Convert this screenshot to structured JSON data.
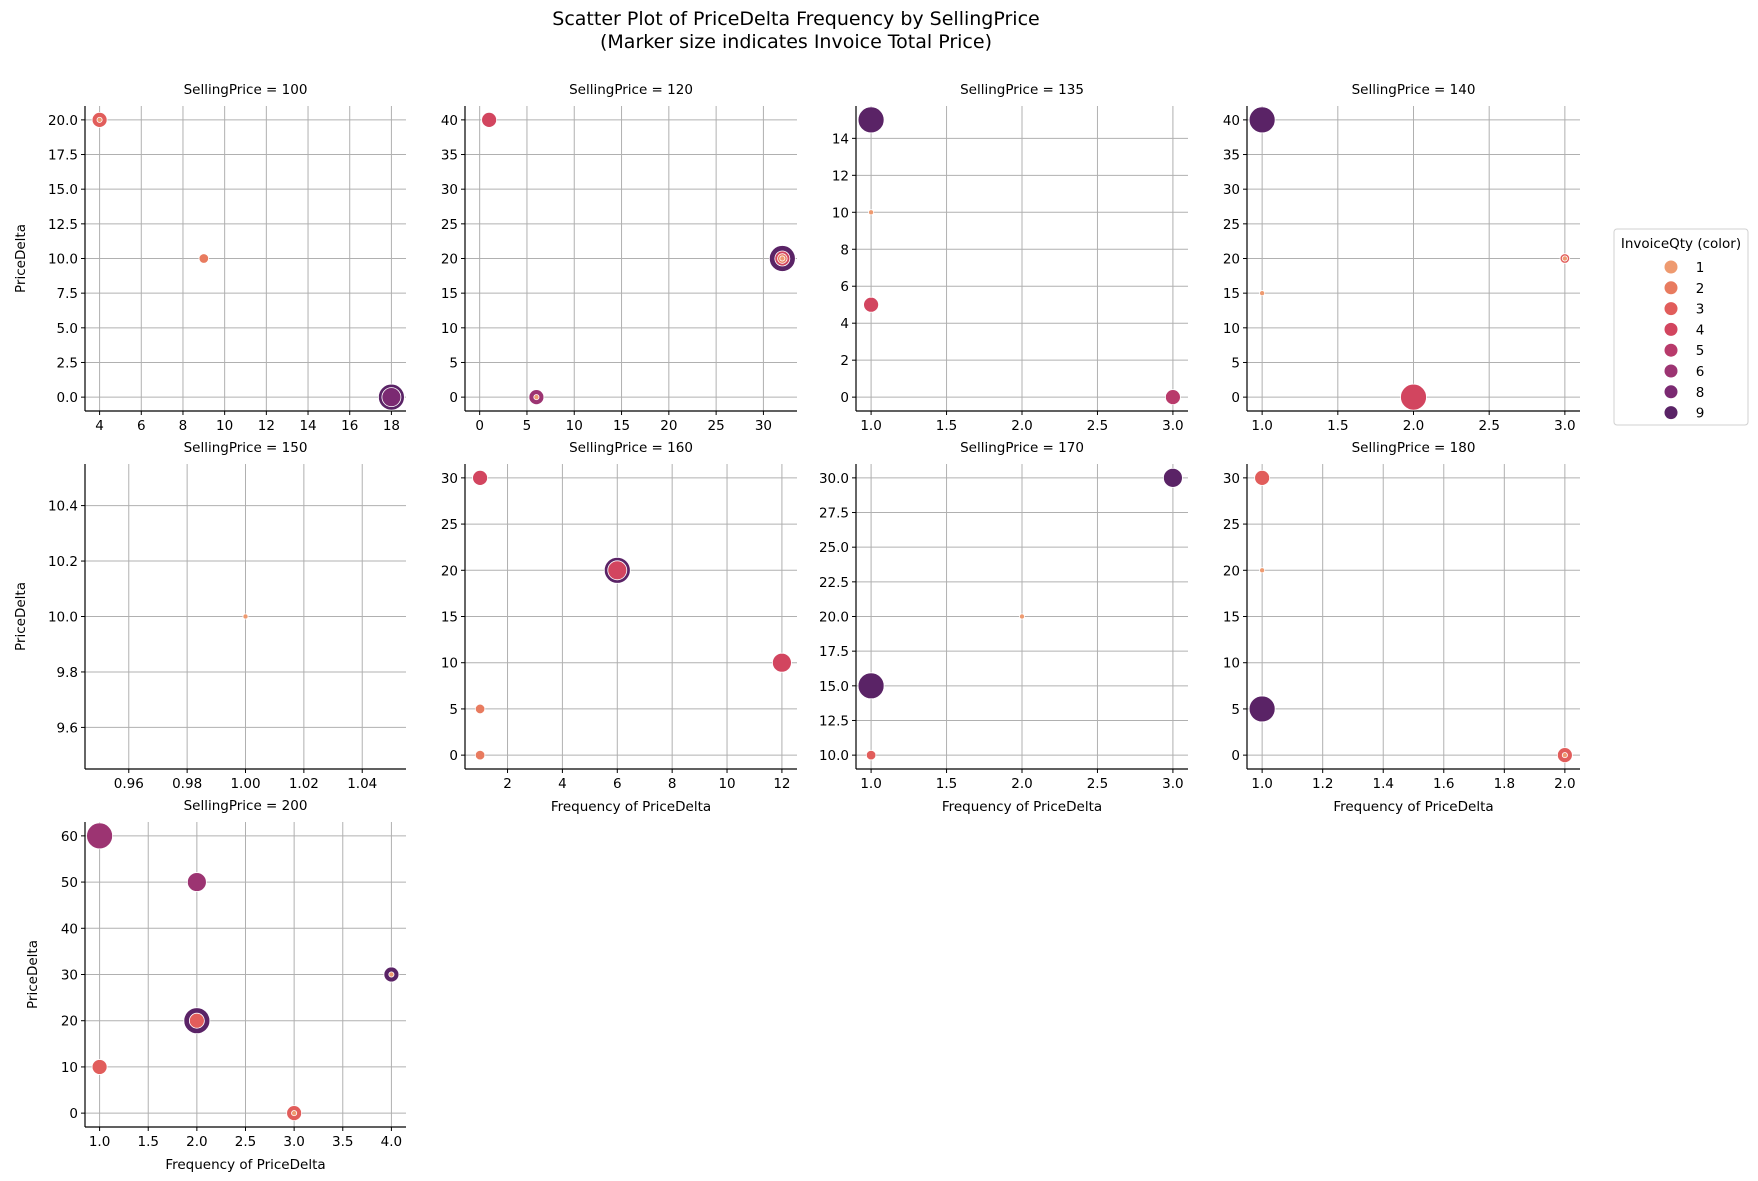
{
  "chart_data": {
    "type": "scatter",
    "title_lines": [
      "Scatter Plot of PriceDelta Frequency by SellingPrice",
      "(Marker size indicates Invoice Total Price)"
    ],
    "xlabel": "Frequency of PriceDelta",
    "ylabel": "PriceDelta",
    "grid": true,
    "legend": {
      "title": "InvoiceQty (color)",
      "placement": "right",
      "entries": [
        {
          "label": "1",
          "color": "#ee9a70"
        },
        {
          "label": "2",
          "color": "#e87b5f"
        },
        {
          "label": "3",
          "color": "#e15d5b"
        },
        {
          "label": "4",
          "color": "#d2455f"
        },
        {
          "label": "5",
          "color": "#b83a6b"
        },
        {
          "label": "6",
          "color": "#9c3472"
        },
        {
          "label": "8",
          "color": "#7b2a72"
        },
        {
          "label": "9",
          "color": "#5a2366"
        }
      ]
    },
    "size_note": "marker_size_level is relative (1 smallest – 5 largest Invoice Total Price)",
    "panels": [
      {
        "title": "SellingPrice = 100",
        "xlim": [
          3.3,
          18.7
        ],
        "ylim": [
          -1,
          21
        ],
        "xticks": [
          "4",
          "6",
          "8",
          "10",
          "12",
          "14",
          "16",
          "18"
        ],
        "yticks": [
          "0.0",
          "2.5",
          "5.0",
          "7.5",
          "10.0",
          "12.5",
          "15.0",
          "17.5",
          "20.0"
        ],
        "show_xlabel": false,
        "show_ylabel": true,
        "points": [
          {
            "x": 18,
            "y": 0,
            "qty": 9,
            "marker_size_level": 5
          },
          {
            "x": 18,
            "y": 0,
            "qty": 8,
            "marker_size_level": 4
          },
          {
            "x": 4,
            "y": 20,
            "qty": 3,
            "marker_size_level": 3
          },
          {
            "x": 4,
            "y": 20,
            "qty": 1,
            "marker_size_level": 1
          },
          {
            "x": 9,
            "y": 10,
            "qty": 2,
            "marker_size_level": 2
          }
        ]
      },
      {
        "title": "SellingPrice = 120",
        "xlim": [
          -1.55,
          33.55
        ],
        "ylim": [
          -2,
          42
        ],
        "xticks": [
          "0",
          "5",
          "10",
          "15",
          "20",
          "25",
          "30"
        ],
        "yticks": [
          "0",
          "5",
          "10",
          "15",
          "20",
          "25",
          "30",
          "35",
          "40"
        ],
        "show_xlabel": false,
        "show_ylabel": false,
        "points": [
          {
            "x": 1,
            "y": 40,
            "qty": 4,
            "marker_size_level": 3
          },
          {
            "x": 6,
            "y": 0,
            "qty": 6,
            "marker_size_level": 3
          },
          {
            "x": 6,
            "y": 0,
            "qty": 1,
            "marker_size_level": 1
          },
          {
            "x": 32,
            "y": 20,
            "qty": 9,
            "marker_size_level": 5
          },
          {
            "x": 32,
            "y": 20,
            "qty": 4,
            "marker_size_level": 3
          },
          {
            "x": 32,
            "y": 20,
            "qty": 2,
            "marker_size_level": 2
          },
          {
            "x": 32,
            "y": 20,
            "qty": 1,
            "marker_size_level": 1
          }
        ]
      },
      {
        "title": "SellingPrice = 135",
        "xlim": [
          0.9,
          3.1
        ],
        "ylim": [
          -0.75,
          15.75
        ],
        "xticks": [
          "1.0",
          "1.5",
          "2.0",
          "2.5",
          "3.0"
        ],
        "yticks": [
          "0",
          "2",
          "4",
          "6",
          "8",
          "10",
          "12",
          "14"
        ],
        "show_xlabel": false,
        "show_ylabel": false,
        "points": [
          {
            "x": 1,
            "y": 15,
            "qty": 9,
            "marker_size_level": 5
          },
          {
            "x": 1,
            "y": 10,
            "qty": 1,
            "marker_size_level": 1
          },
          {
            "x": 1,
            "y": 5,
            "qty": 4,
            "marker_size_level": 3
          },
          {
            "x": 3,
            "y": 0,
            "qty": 5,
            "marker_size_level": 3
          }
        ]
      },
      {
        "title": "SellingPrice = 140",
        "xlim": [
          0.9,
          3.1
        ],
        "ylim": [
          -2,
          42
        ],
        "xticks": [
          "1.0",
          "1.5",
          "2.0",
          "2.5",
          "3.0"
        ],
        "yticks": [
          "0",
          "5",
          "10",
          "15",
          "20",
          "25",
          "30",
          "35",
          "40"
        ],
        "show_xlabel": false,
        "show_ylabel": false,
        "points": [
          {
            "x": 1,
            "y": 40,
            "qty": 9,
            "marker_size_level": 5
          },
          {
            "x": 1,
            "y": 15,
            "qty": 1,
            "marker_size_level": 1
          },
          {
            "x": 3,
            "y": 20,
            "qty": 3,
            "marker_size_level": 2
          },
          {
            "x": 3,
            "y": 20,
            "qty": 1,
            "marker_size_level": 1
          },
          {
            "x": 2,
            "y": 0,
            "qty": 4,
            "marker_size_level": 5
          }
        ]
      },
      {
        "title": "SellingPrice = 150",
        "xlim": [
          0.945,
          1.055
        ],
        "ylim": [
          9.45,
          10.55
        ],
        "xticks": [
          "0.96",
          "0.98",
          "1.00",
          "1.02",
          "1.04"
        ],
        "yticks": [
          "9.6",
          "9.8",
          "10.0",
          "10.2",
          "10.4"
        ],
        "show_xlabel": false,
        "show_ylabel": true,
        "points": [
          {
            "x": 1,
            "y": 10,
            "qty": 1,
            "marker_size_level": 1
          }
        ]
      },
      {
        "title": "SellingPrice = 160",
        "xlim": [
          0.45,
          12.55
        ],
        "ylim": [
          -1.5,
          31.5
        ],
        "xticks": [
          "2",
          "4",
          "6",
          "8",
          "10",
          "12"
        ],
        "yticks": [
          "0",
          "5",
          "10",
          "15",
          "20",
          "25",
          "30"
        ],
        "show_xlabel": true,
        "show_ylabel": false,
        "points": [
          {
            "x": 1,
            "y": 30,
            "qty": 4,
            "marker_size_level": 3
          },
          {
            "x": 6,
            "y": 20,
            "qty": 9,
            "marker_size_level": 5
          },
          {
            "x": 6,
            "y": 20,
            "qty": 4,
            "marker_size_level": 4
          },
          {
            "x": 12,
            "y": 10,
            "qty": 4,
            "marker_size_level": 4
          },
          {
            "x": 1,
            "y": 5,
            "qty": 2,
            "marker_size_level": 2
          },
          {
            "x": 1,
            "y": 0,
            "qty": 2,
            "marker_size_level": 2
          }
        ]
      },
      {
        "title": "SellingPrice = 170",
        "xlim": [
          0.9,
          3.1
        ],
        "ylim": [
          9,
          31
        ],
        "xticks": [
          "1.0",
          "1.5",
          "2.0",
          "2.5",
          "3.0"
        ],
        "yticks": [
          "10.0",
          "12.5",
          "15.0",
          "17.5",
          "20.0",
          "22.5",
          "25.0",
          "27.5",
          "30.0"
        ],
        "show_xlabel": true,
        "show_ylabel": false,
        "points": [
          {
            "x": 3,
            "y": 30,
            "qty": 9,
            "marker_size_level": 4
          },
          {
            "x": 2,
            "y": 20,
            "qty": 1,
            "marker_size_level": 1
          },
          {
            "x": 1,
            "y": 15,
            "qty": 9,
            "marker_size_level": 5
          },
          {
            "x": 1,
            "y": 10,
            "qty": 3,
            "marker_size_level": 2
          }
        ]
      },
      {
        "title": "SellingPrice = 180",
        "xlim": [
          0.95,
          2.05
        ],
        "ylim": [
          -1.5,
          31.5
        ],
        "xticks": [
          "1.0",
          "1.2",
          "1.4",
          "1.6",
          "1.8",
          "2.0"
        ],
        "yticks": [
          "0",
          "5",
          "10",
          "15",
          "20",
          "25",
          "30"
        ],
        "show_xlabel": true,
        "show_ylabel": false,
        "points": [
          {
            "x": 1,
            "y": 30,
            "qty": 3,
            "marker_size_level": 3
          },
          {
            "x": 1,
            "y": 20,
            "qty": 1,
            "marker_size_level": 1
          },
          {
            "x": 1,
            "y": 5,
            "qty": 9,
            "marker_size_level": 5
          },
          {
            "x": 2,
            "y": 0,
            "qty": 3,
            "marker_size_level": 3
          },
          {
            "x": 2,
            "y": 0,
            "qty": 1,
            "marker_size_level": 1
          }
        ]
      },
      {
        "title": "SellingPrice = 200",
        "xlim": [
          0.85,
          4.15
        ],
        "ylim": [
          -3,
          63
        ],
        "xticks": [
          "1.0",
          "1.5",
          "2.0",
          "2.5",
          "3.0",
          "3.5",
          "4.0"
        ],
        "yticks": [
          "0",
          "10",
          "20",
          "30",
          "40",
          "50",
          "60"
        ],
        "show_xlabel": true,
        "show_ylabel": true,
        "points": [
          {
            "x": 1,
            "y": 60,
            "qty": 6,
            "marker_size_level": 5
          },
          {
            "x": 2,
            "y": 50,
            "qty": 6,
            "marker_size_level": 4
          },
          {
            "x": 4,
            "y": 30,
            "qty": 9,
            "marker_size_level": 3
          },
          {
            "x": 4,
            "y": 30,
            "qty": 1,
            "marker_size_level": 1
          },
          {
            "x": 2,
            "y": 20,
            "qty": 9,
            "marker_size_level": 5
          },
          {
            "x": 2,
            "y": 20,
            "qty": 3,
            "marker_size_level": 3
          },
          {
            "x": 1,
            "y": 10,
            "qty": 3,
            "marker_size_level": 3
          },
          {
            "x": 3,
            "y": 0,
            "qty": 3,
            "marker_size_level": 3
          },
          {
            "x": 3,
            "y": 0,
            "qty": 1,
            "marker_size_level": 1
          }
        ]
      }
    ]
  }
}
